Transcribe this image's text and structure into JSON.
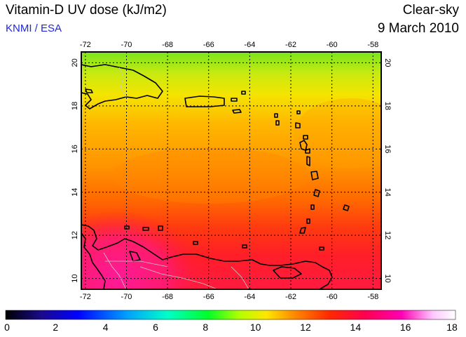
{
  "header": {
    "title": "Vitamin-D UV dose (kJ/m2)",
    "credit": "KNMI / ESA",
    "condition": "Clear-sky",
    "date": "9 March 2010"
  },
  "map": {
    "lon_ticks": [
      "-72",
      "-70",
      "-68",
      "-66",
      "-64",
      "-62",
      "-60",
      "-58"
    ],
    "lat_ticks": [
      "10",
      "12",
      "14",
      "16",
      "18",
      "20"
    ],
    "colors": {
      "high_north": "#78e61e",
      "mid_north": "#f0e600",
      "orange": "#ff9a00",
      "red_orange": "#ff5a00",
      "red": "#ff1e1e",
      "magenta": "#ff1a8c",
      "land_outline": "#000000",
      "border": "#c8c8c8"
    }
  },
  "colorbar": {
    "labels": [
      "0",
      "2",
      "4",
      "6",
      "8",
      "10",
      "12",
      "14",
      "16",
      "18"
    ],
    "colors": [
      "#000000",
      "#1a0a8c",
      "#0000ff",
      "#00a0ff",
      "#00ffc8",
      "#00ff28",
      "#b4ff00",
      "#ffe600",
      "#ff8c00",
      "#ff2800",
      "#ff0050",
      "#ff00b4",
      "#ffc8ff",
      "#ffffff"
    ]
  }
}
